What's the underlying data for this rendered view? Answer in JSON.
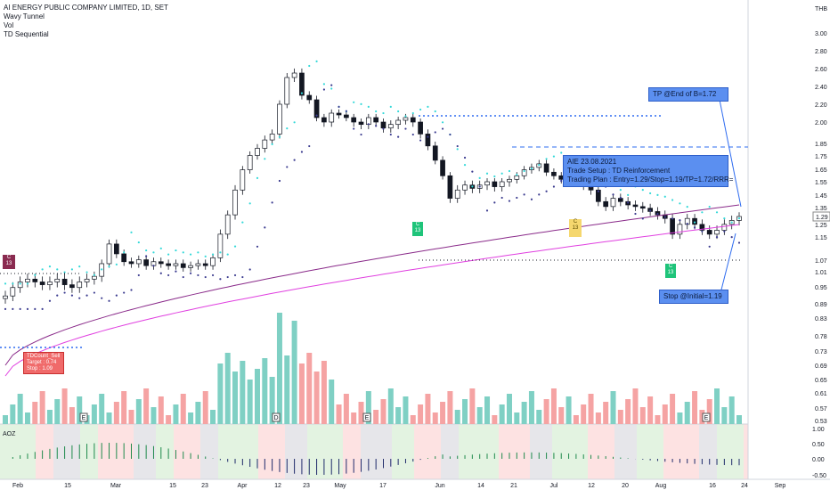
{
  "legend": {
    "title": "AI ENERGY PUBLIC COMPANY LIMITED, 1D, SET",
    "indicators": [
      "Wavy Tunnel",
      "Vol",
      "TD Sequential"
    ]
  },
  "currency": "THB",
  "price_axis": [
    "3.00",
    "2.80",
    "2.60",
    "2.40",
    "2.20",
    "2.00",
    "1.85",
    "1.75",
    "1.65",
    "1.55",
    "1.45",
    "1.35",
    "1.29",
    "1.25",
    "1.15",
    "1.07",
    "1.01",
    "0.95",
    "0.89",
    "0.83",
    "0.78",
    "0.73",
    "0.69",
    "0.65",
    "0.61",
    "0.57",
    "0.53"
  ],
  "price_axis_current": "1.29",
  "osc_axis": [
    "1.00",
    "0.50",
    "0.00",
    "-0.50"
  ],
  "time_axis": [
    "Feb",
    "15",
    "Mar",
    "15",
    "23",
    "Apr",
    "12",
    "23",
    "May",
    "17",
    "Jun",
    "14",
    "21",
    "Jul",
    "12",
    "20",
    "Aug",
    "16",
    "24",
    "Sep"
  ],
  "oscillator_label": "AOZ",
  "annotations": {
    "tp_box": "TP @End of B=1.72",
    "stop_box": "Stop @Initial=1.19",
    "trade_setup_title": "AIE 23.08.2021",
    "trade_setup_line1": "Trade Setup : TD Reinforcement",
    "trade_setup_line2": "Trading Plan : Entry=1.29/Stop=1.19/TP=1.72/RRR=",
    "tdcount_line1": "TDCount_Sell",
    "tdcount_line2": "Target : 0.74",
    "tdcount_line3": "Stop : 1.09"
  },
  "badges": {
    "c13_left": "C\n13",
    "buy_may": "C\n13",
    "yellow_jul": "C\n13",
    "buy_aug": "C\n13"
  },
  "event_markers": [
    "E",
    "D",
    "E",
    "E"
  ],
  "colors": {
    "up_candle": "#ffffff",
    "down_candle": "#131722",
    "vol_up": "#7fd0c4",
    "vol_down": "#f5a3a3",
    "tunnel_cyan": "#34d9d9",
    "tunnel_purple": "#3b3b8f",
    "ma_magenta": "#e040e0",
    "ma_purple": "#8a2b8a",
    "callout_blue": "#5b8ff0"
  }
}
